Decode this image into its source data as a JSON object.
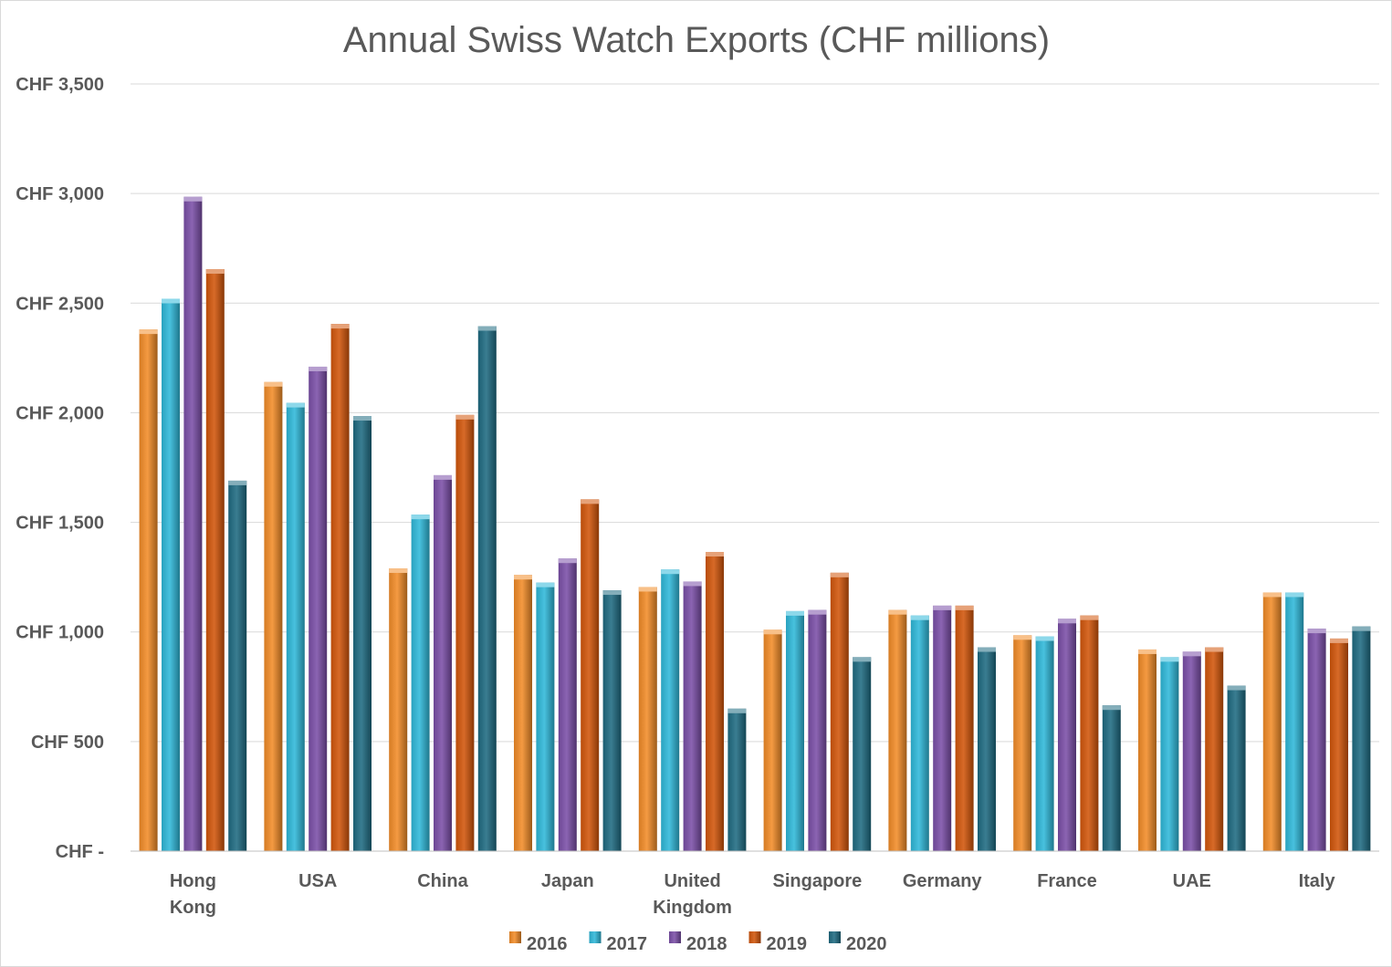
{
  "chart_data": {
    "type": "bar",
    "title": "Annual Swiss Watch Exports (CHF millions)",
    "xlabel": "",
    "ylabel": "",
    "ylim": [
      0,
      3500
    ],
    "yticks": [
      0,
      500,
      1000,
      1500,
      2000,
      2500,
      3000,
      3500
    ],
    "ytick_labels": [
      "CHF -",
      "CHF 500",
      "CHF 1,000",
      "CHF 1,500",
      "CHF 2,000",
      "CHF 2,500",
      "CHF 3,000",
      "CHF 3,500"
    ],
    "grid": true,
    "legend_position": "bottom",
    "categories": [
      [
        "Hong",
        "Kong"
      ],
      [
        "USA"
      ],
      [
        "China"
      ],
      [
        "Japan"
      ],
      [
        "United",
        "Kingdom"
      ],
      [
        "Singapore"
      ],
      [
        "Germany"
      ],
      [
        "France"
      ],
      [
        "UAE"
      ],
      [
        "Italy"
      ]
    ],
    "series": [
      {
        "name": "2016",
        "color": "#f28c28",
        "values": [
          2380,
          2140,
          1290,
          1260,
          1205,
          1010,
          1100,
          985,
          920,
          1180
        ]
      },
      {
        "name": "2017",
        "color": "#2fb8d9",
        "values": [
          2520,
          2045,
          1535,
          1225,
          1285,
          1095,
          1075,
          980,
          885,
          1180
        ]
      },
      {
        "name": "2018",
        "color": "#7b4fa8",
        "values": [
          2985,
          2210,
          1715,
          1335,
          1230,
          1100,
          1120,
          1060,
          910,
          1015
        ]
      },
      {
        "name": "2019",
        "color": "#d2560b",
        "values": [
          2655,
          2405,
          1990,
          1605,
          1365,
          1270,
          1120,
          1075,
          930,
          970
        ]
      },
      {
        "name": "2020",
        "color": "#1f6b82",
        "values": [
          1690,
          1985,
          2395,
          1190,
          650,
          885,
          930,
          665,
          755,
          1025
        ]
      }
    ]
  }
}
